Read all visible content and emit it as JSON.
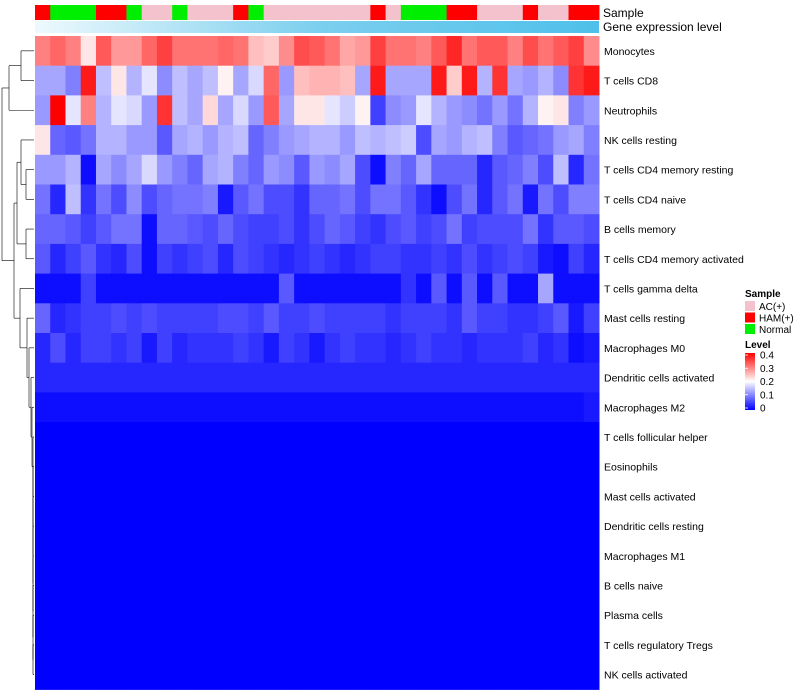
{
  "chart_data": {
    "type": "heatmap",
    "title": "",
    "annotations": {
      "sample_label": "Sample",
      "expression_label": "Gene expression level",
      "samples": [
        "HAM(+)",
        "Normal",
        "Normal",
        "Normal",
        "HAM(+)",
        "HAM(+)",
        "Normal",
        "AC(+)",
        "AC(+)",
        "Normal",
        "AC(+)",
        "AC(+)",
        "AC(+)",
        "HAM(+)",
        "Normal",
        "AC(+)",
        "AC(+)",
        "AC(+)",
        "AC(+)",
        "AC(+)",
        "AC(+)",
        "AC(+)",
        "HAM(+)",
        "AC(+)",
        "Normal",
        "Normal",
        "Normal",
        "HAM(+)",
        "HAM(+)",
        "AC(+)",
        "AC(+)",
        "AC(+)",
        "HAM(+)",
        "AC(+)",
        "AC(+)",
        "HAM(+)",
        "HAM(+)"
      ],
      "expression_gradient": [
        "#eef9fd",
        "#7ccfee",
        "#4fc0ea"
      ]
    },
    "rows": [
      "Monocytes",
      "T cells CD8",
      "Neutrophils",
      "NK cells resting",
      "T cells CD4 memory resting",
      "T cells CD4 naive",
      "B cells memory",
      "T cells CD4 memory activated",
      "T cells gamma delta",
      "Mast cells resting",
      "Macrophages M0",
      "Dendritic cells activated",
      "Macrophages M2",
      "T cells follicular helper",
      "Eosinophils",
      "Mast cells activated",
      "Dendritic cells resting",
      "Macrophages M1",
      "B cells naive",
      "Plasma cells",
      "T cells regulatory  Tregs",
      "NK cells activated"
    ],
    "values": [
      [
        0.3,
        0.32,
        0.3,
        0.22,
        0.33,
        0.28,
        0.28,
        0.32,
        0.35,
        0.31,
        0.31,
        0.31,
        0.32,
        0.31,
        0.25,
        0.24,
        0.29,
        0.34,
        0.33,
        0.31,
        0.27,
        0.28,
        0.35,
        0.31,
        0.31,
        0.3,
        0.33,
        0.37,
        0.31,
        0.33,
        0.33,
        0.3,
        0.34,
        0.31,
        0.33,
        0.35,
        0.29
      ],
      [
        0.13,
        0.13,
        0.1,
        0.38,
        0.15,
        0.22,
        0.14,
        0.18,
        0.11,
        0.15,
        0.13,
        0.15,
        0.21,
        0.13,
        0.17,
        0.32,
        0.12,
        0.25,
        0.26,
        0.26,
        0.25,
        0.13,
        0.38,
        0.13,
        0.13,
        0.13,
        0.38,
        0.24,
        0.38,
        0.14,
        0.36,
        0.13,
        0.12,
        0.14,
        0.11,
        0.36,
        0.38
      ],
      [
        0.12,
        0.4,
        0.18,
        0.3,
        0.14,
        0.18,
        0.17,
        0.12,
        0.36,
        0.15,
        0.13,
        0.23,
        0.13,
        0.17,
        0.12,
        0.33,
        0.13,
        0.22,
        0.22,
        0.18,
        0.16,
        0.21,
        0.05,
        0.11,
        0.12,
        0.18,
        0.14,
        0.12,
        0.11,
        0.09,
        0.12,
        0.09,
        0.14,
        0.21,
        0.22,
        0.1,
        0.12
      ],
      [
        0.22,
        0.08,
        0.07,
        0.09,
        0.14,
        0.14,
        0.12,
        0.12,
        0.07,
        0.13,
        0.14,
        0.12,
        0.14,
        0.15,
        0.08,
        0.1,
        0.12,
        0.13,
        0.14,
        0.14,
        0.12,
        0.15,
        0.14,
        0.15,
        0.16,
        0.06,
        0.13,
        0.12,
        0.14,
        0.15,
        0.1,
        0.07,
        0.08,
        0.09,
        0.12,
        0.13,
        0.1
      ],
      [
        0.12,
        0.12,
        0.14,
        0.01,
        0.13,
        0.11,
        0.13,
        0.17,
        0.12,
        0.1,
        0.08,
        0.13,
        0.14,
        0.1,
        0.08,
        0.12,
        0.11,
        0.07,
        0.12,
        0.11,
        0.13,
        0.06,
        0.01,
        0.1,
        0.08,
        0.13,
        0.08,
        0.08,
        0.08,
        0.03,
        0.07,
        0.08,
        0.1,
        0.06,
        0.15,
        0.03,
        0.09
      ],
      [
        0.09,
        0.03,
        0.15,
        0.04,
        0.09,
        0.06,
        0.11,
        0.06,
        0.08,
        0.09,
        0.09,
        0.1,
        0.02,
        0.07,
        0.09,
        0.06,
        0.06,
        0.04,
        0.08,
        0.08,
        0.09,
        0.06,
        0.09,
        0.09,
        0.07,
        0.04,
        0.01,
        0.06,
        0.09,
        0.03,
        0.07,
        0.09,
        0.02,
        0.09,
        0.06,
        0.1,
        0.1
      ],
      [
        0.08,
        0.08,
        0.07,
        0.05,
        0.07,
        0.09,
        0.09,
        0.01,
        0.08,
        0.08,
        0.07,
        0.06,
        0.08,
        0.06,
        0.05,
        0.05,
        0.06,
        0.04,
        0.06,
        0.08,
        0.07,
        0.05,
        0.04,
        0.06,
        0.07,
        0.05,
        0.06,
        0.09,
        0.05,
        0.06,
        0.06,
        0.06,
        0.09,
        0.04,
        0.07,
        0.07,
        0.06
      ],
      [
        0.07,
        0.03,
        0.05,
        0.07,
        0.04,
        0.03,
        0.06,
        0.01,
        0.05,
        0.04,
        0.05,
        0.06,
        0.03,
        0.06,
        0.05,
        0.04,
        0.03,
        0.04,
        0.05,
        0.04,
        0.03,
        0.04,
        0.05,
        0.05,
        0.04,
        0.04,
        0.05,
        0.04,
        0.06,
        0.04,
        0.05,
        0.06,
        0.05,
        0.02,
        0.01,
        0.05,
        0.03
      ],
      [
        0.01,
        0.01,
        0.01,
        0.05,
        0.01,
        0.01,
        0.01,
        0.01,
        0.01,
        0.01,
        0.01,
        0.01,
        0.01,
        0.01,
        0.01,
        0.01,
        0.07,
        0.01,
        0.01,
        0.01,
        0.01,
        0.01,
        0.01,
        0.01,
        0.04,
        0.01,
        0.07,
        0.01,
        0.07,
        0.01,
        0.07,
        0.01,
        0.01,
        0.13,
        0.01,
        0.01,
        0.01
      ],
      [
        0.08,
        0.03,
        0.04,
        0.05,
        0.05,
        0.06,
        0.05,
        0.06,
        0.05,
        0.05,
        0.05,
        0.05,
        0.06,
        0.06,
        0.05,
        0.07,
        0.05,
        0.05,
        0.06,
        0.05,
        0.05,
        0.05,
        0.05,
        0.04,
        0.05,
        0.05,
        0.05,
        0.04,
        0.07,
        0.05,
        0.05,
        0.04,
        0.04,
        0.05,
        0.07,
        0.02,
        0.05
      ],
      [
        0.03,
        0.06,
        0.03,
        0.05,
        0.05,
        0.04,
        0.05,
        0.02,
        0.05,
        0.03,
        0.04,
        0.04,
        0.04,
        0.05,
        0.04,
        0.02,
        0.05,
        0.04,
        0.02,
        0.04,
        0.05,
        0.04,
        0.04,
        0.03,
        0.04,
        0.05,
        0.04,
        0.04,
        0.03,
        0.04,
        0.04,
        0.04,
        0.05,
        0.03,
        0.04,
        0.01,
        0.02
      ],
      [
        0.03,
        0.03,
        0.03,
        0.03,
        0.03,
        0.03,
        0.03,
        0.03,
        0.03,
        0.03,
        0.03,
        0.03,
        0.03,
        0.03,
        0.03,
        0.03,
        0.03,
        0.03,
        0.03,
        0.03,
        0.03,
        0.03,
        0.03,
        0.03,
        0.03,
        0.03,
        0.03,
        0.03,
        0.03,
        0.03,
        0.03,
        0.03,
        0.03,
        0.03,
        0.03,
        0.03,
        0.03
      ],
      [
        0.01,
        0.01,
        0.01,
        0.01,
        0.01,
        0.01,
        0.01,
        0.01,
        0.01,
        0.01,
        0.01,
        0.01,
        0.01,
        0.01,
        0.01,
        0.01,
        0.01,
        0.01,
        0.01,
        0.01,
        0.01,
        0.01,
        0.01,
        0.01,
        0.01,
        0.01,
        0.01,
        0.01,
        0.01,
        0.01,
        0.01,
        0.01,
        0.01,
        0.01,
        0.01,
        0.01,
        0.02
      ],
      [
        0.0,
        0.0,
        0.0,
        0.0,
        0.0,
        0.0,
        0.0,
        0.0,
        0.0,
        0.0,
        0.0,
        0.0,
        0.0,
        0.0,
        0.0,
        0.0,
        0.0,
        0.0,
        0.0,
        0.0,
        0.0,
        0.0,
        0.0,
        0.0,
        0.0,
        0.0,
        0.0,
        0.0,
        0.0,
        0.0,
        0.0,
        0.0,
        0.0,
        0.0,
        0.0,
        0.0,
        0.0
      ],
      [
        0.0,
        0.0,
        0.0,
        0.0,
        0.0,
        0.0,
        0.0,
        0.0,
        0.0,
        0.0,
        0.0,
        0.0,
        0.0,
        0.0,
        0.0,
        0.0,
        0.0,
        0.0,
        0.0,
        0.0,
        0.0,
        0.0,
        0.0,
        0.0,
        0.0,
        0.0,
        0.0,
        0.0,
        0.0,
        0.0,
        0.0,
        0.0,
        0.0,
        0.0,
        0.0,
        0.0,
        0.0
      ],
      [
        0.0,
        0.0,
        0.0,
        0.0,
        0.0,
        0.0,
        0.0,
        0.0,
        0.0,
        0.0,
        0.0,
        0.0,
        0.0,
        0.0,
        0.0,
        0.0,
        0.0,
        0.0,
        0.0,
        0.0,
        0.0,
        0.0,
        0.0,
        0.0,
        0.0,
        0.0,
        0.0,
        0.0,
        0.0,
        0.0,
        0.0,
        0.0,
        0.0,
        0.0,
        0.0,
        0.0,
        0.0
      ],
      [
        0.0,
        0.0,
        0.0,
        0.0,
        0.0,
        0.0,
        0.0,
        0.0,
        0.0,
        0.0,
        0.0,
        0.0,
        0.0,
        0.0,
        0.0,
        0.0,
        0.0,
        0.0,
        0.0,
        0.0,
        0.0,
        0.0,
        0.0,
        0.0,
        0.0,
        0.0,
        0.0,
        0.0,
        0.0,
        0.0,
        0.0,
        0.0,
        0.0,
        0.0,
        0.0,
        0.0,
        0.0
      ],
      [
        0.0,
        0.0,
        0.0,
        0.0,
        0.0,
        0.0,
        0.0,
        0.0,
        0.0,
        0.0,
        0.0,
        0.0,
        0.0,
        0.0,
        0.0,
        0.0,
        0.0,
        0.0,
        0.0,
        0.0,
        0.0,
        0.0,
        0.0,
        0.0,
        0.0,
        0.0,
        0.0,
        0.0,
        0.0,
        0.0,
        0.0,
        0.0,
        0.0,
        0.0,
        0.0,
        0.0,
        0.0
      ],
      [
        0.0,
        0.0,
        0.0,
        0.0,
        0.0,
        0.0,
        0.0,
        0.0,
        0.0,
        0.0,
        0.0,
        0.0,
        0.0,
        0.0,
        0.0,
        0.0,
        0.0,
        0.0,
        0.0,
        0.0,
        0.0,
        0.0,
        0.0,
        0.0,
        0.0,
        0.0,
        0.0,
        0.0,
        0.0,
        0.0,
        0.0,
        0.0,
        0.0,
        0.0,
        0.0,
        0.0,
        0.0
      ],
      [
        0.0,
        0.0,
        0.0,
        0.0,
        0.0,
        0.0,
        0.0,
        0.0,
        0.0,
        0.0,
        0.0,
        0.0,
        0.0,
        0.0,
        0.0,
        0.0,
        0.0,
        0.0,
        0.0,
        0.0,
        0.0,
        0.0,
        0.0,
        0.0,
        0.0,
        0.0,
        0.0,
        0.0,
        0.0,
        0.0,
        0.0,
        0.0,
        0.0,
        0.0,
        0.0,
        0.0,
        0.0
      ],
      [
        0.0,
        0.0,
        0.0,
        0.0,
        0.0,
        0.0,
        0.0,
        0.0,
        0.0,
        0.0,
        0.0,
        0.0,
        0.0,
        0.0,
        0.0,
        0.0,
        0.0,
        0.0,
        0.0,
        0.0,
        0.0,
        0.0,
        0.0,
        0.0,
        0.0,
        0.0,
        0.0,
        0.0,
        0.0,
        0.0,
        0.0,
        0.0,
        0.0,
        0.0,
        0.0,
        0.0,
        0.0
      ],
      [
        0.0,
        0.0,
        0.0,
        0.0,
        0.0,
        0.0,
        0.0,
        0.0,
        0.0,
        0.0,
        0.0,
        0.0,
        0.0,
        0.0,
        0.0,
        0.0,
        0.0,
        0.0,
        0.0,
        0.0,
        0.0,
        0.0,
        0.0,
        0.0,
        0.0,
        0.0,
        0.0,
        0.0,
        0.0,
        0.0,
        0.0,
        0.0,
        0.0,
        0.0,
        0.0,
        0.0,
        0.0
      ]
    ],
    "color_scale": {
      "min": 0,
      "max": 0.4,
      "stops": [
        {
          "value": 0,
          "color": "#0000ff"
        },
        {
          "value": 0.2,
          "color": "#ffffff"
        },
        {
          "value": 0.4,
          "color": "#ff0000"
        }
      ]
    },
    "legend_sample": {
      "title": "Sample",
      "entries": [
        {
          "label": "AC(+)",
          "color": "#f4c2cc"
        },
        {
          "label": "HAM(+)",
          "color": "#ff0000"
        },
        {
          "label": "Normal",
          "color": "#00ee00"
        }
      ]
    },
    "legend_level": {
      "title": "Level",
      "ticks": [
        "0.4",
        "0.3",
        "0.2",
        "0.1",
        "0"
      ],
      "tick_values": [
        0.4,
        0.3,
        0.2,
        0.1,
        0
      ]
    }
  }
}
